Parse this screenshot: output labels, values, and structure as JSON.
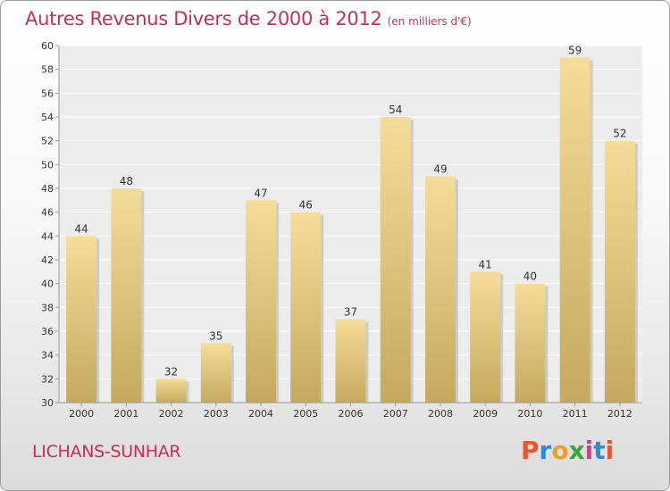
{
  "header": {
    "title": "Autres Revenus Divers de 2000 à 2012",
    "subtitle": "(en milliers d'€)"
  },
  "location": "LICHANS-SUNHAR",
  "logo": {
    "text": "Proxiti",
    "colors": [
      "#e8562e",
      "#2a8fd0",
      "#e8a020",
      "#3aa63c",
      "#d63c8f",
      "#2a8fd0",
      "#e8562e"
    ]
  },
  "colors": {
    "title": "#c62e5a",
    "bar_light": "#f5dc98",
    "bar_dark": "#c4a95e",
    "plot_bg": "#ececec",
    "grid": "#ffffff",
    "axis": "#999999",
    "text": "#333333"
  },
  "chart_data": {
    "type": "bar",
    "categories": [
      "2000",
      "2001",
      "2002",
      "2003",
      "2004",
      "2005",
      "2006",
      "2007",
      "2008",
      "2009",
      "2010",
      "2011",
      "2012"
    ],
    "values": [
      44,
      48,
      32,
      35,
      47,
      46,
      37,
      54,
      49,
      41,
      40,
      59,
      52
    ],
    "ylim": [
      30,
      60
    ],
    "yticks": [
      30,
      32,
      34,
      36,
      38,
      40,
      42,
      44,
      46,
      48,
      50,
      52,
      54,
      56,
      58,
      60
    ],
    "xlabel": "",
    "ylabel": "",
    "grid": true,
    "data_labels": true
  }
}
